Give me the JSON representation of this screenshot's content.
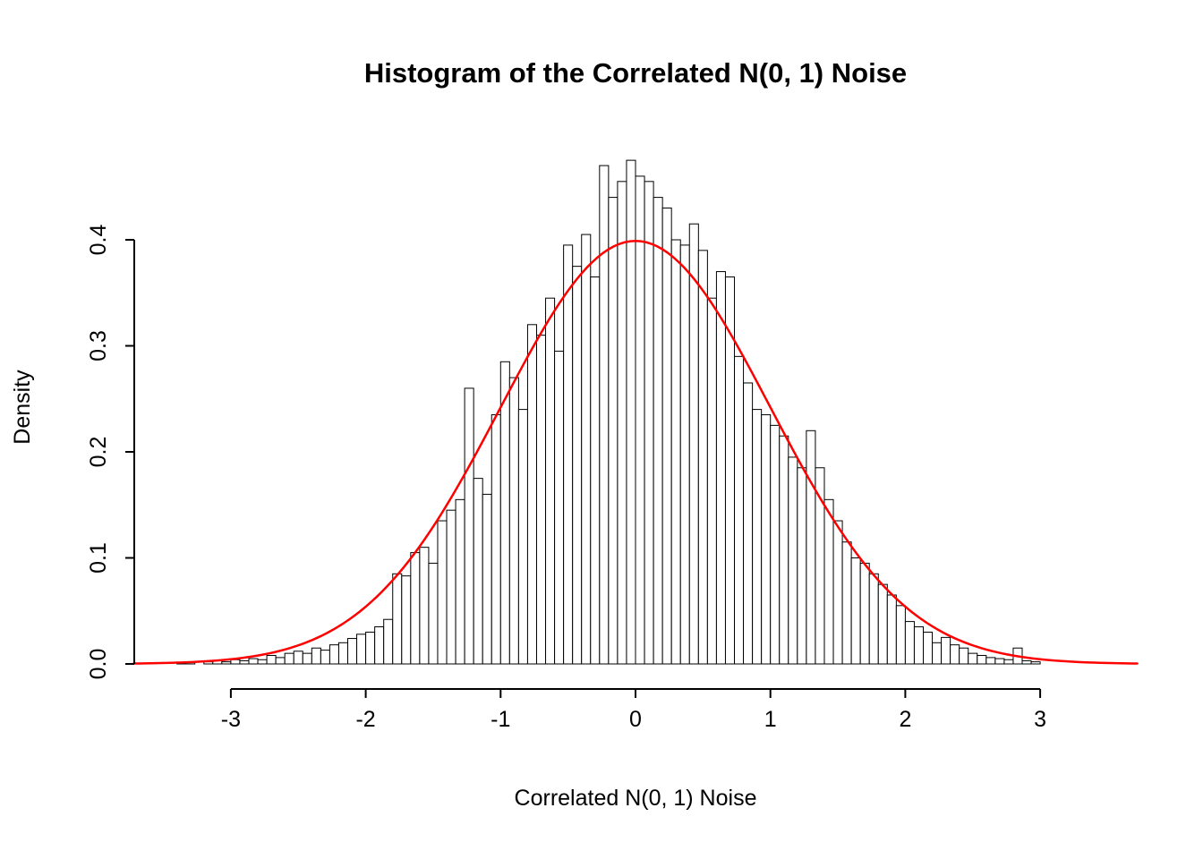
{
  "chart_data": {
    "type": "bar",
    "subtype": "histogram",
    "title": "Histogram of the Correlated N(0, 1) Noise",
    "xlabel": "Correlated N(0, 1) Noise",
    "ylabel": "Density",
    "x_ticks": [
      {
        "value": -3,
        "label": "-3"
      },
      {
        "value": -2,
        "label": "-2"
      },
      {
        "value": -1,
        "label": "-1"
      },
      {
        "value": 0,
        "label": "0"
      },
      {
        "value": 1,
        "label": "1"
      },
      {
        "value": 2,
        "label": "2"
      },
      {
        "value": 3,
        "label": "3"
      }
    ],
    "y_ticks": [
      {
        "value": 0.0,
        "label": "0.0"
      },
      {
        "value": 0.1,
        "label": "0.1"
      },
      {
        "value": 0.2,
        "label": "0.2"
      },
      {
        "value": 0.3,
        "label": "0.3"
      },
      {
        "value": 0.4,
        "label": "0.4"
      }
    ],
    "xlim": [
      -3.72,
      3.72
    ],
    "ylim": [
      0,
      0.485
    ],
    "grid": false,
    "legend": "none",
    "bins": {
      "start": -3.4,
      "width": 0.066667,
      "densities": [
        0.001,
        0.002,
        0.0,
        0.002,
        0.003,
        0.002,
        0.004,
        0.003,
        0.005,
        0.004,
        0.008,
        0.006,
        0.01,
        0.012,
        0.01,
        0.015,
        0.013,
        0.018,
        0.02,
        0.024,
        0.028,
        0.03,
        0.035,
        0.042,
        0.085,
        0.083,
        0.105,
        0.11,
        0.095,
        0.135,
        0.145,
        0.155,
        0.26,
        0.175,
        0.16,
        0.235,
        0.285,
        0.27,
        0.24,
        0.32,
        0.31,
        0.345,
        0.295,
        0.395,
        0.375,
        0.405,
        0.365,
        0.47,
        0.44,
        0.455,
        0.475,
        0.46,
        0.455,
        0.44,
        0.43,
        0.4,
        0.395,
        0.415,
        0.39,
        0.345,
        0.37,
        0.365,
        0.29,
        0.265,
        0.24,
        0.235,
        0.225,
        0.215,
        0.195,
        0.185,
        0.22,
        0.185,
        0.155,
        0.135,
        0.115,
        0.1,
        0.095,
        0.085,
        0.075,
        0.065,
        0.055,
        0.04,
        0.035,
        0.03,
        0.02,
        0.025,
        0.018,
        0.015,
        0.01,
        0.008,
        0.006,
        0.005,
        0.004,
        0.015,
        0.003,
        0.002
      ]
    },
    "overlay_curve": {
      "name": "standard-normal-pdf",
      "mean": 0,
      "sd": 1,
      "peak_density": 0.3989,
      "color": "#ff0000"
    },
    "style": {
      "bar_fill": "#ffffff",
      "bar_stroke": "#000000",
      "axis_color": "#000000",
      "text_color": "#000000",
      "background": "#ffffff"
    }
  }
}
